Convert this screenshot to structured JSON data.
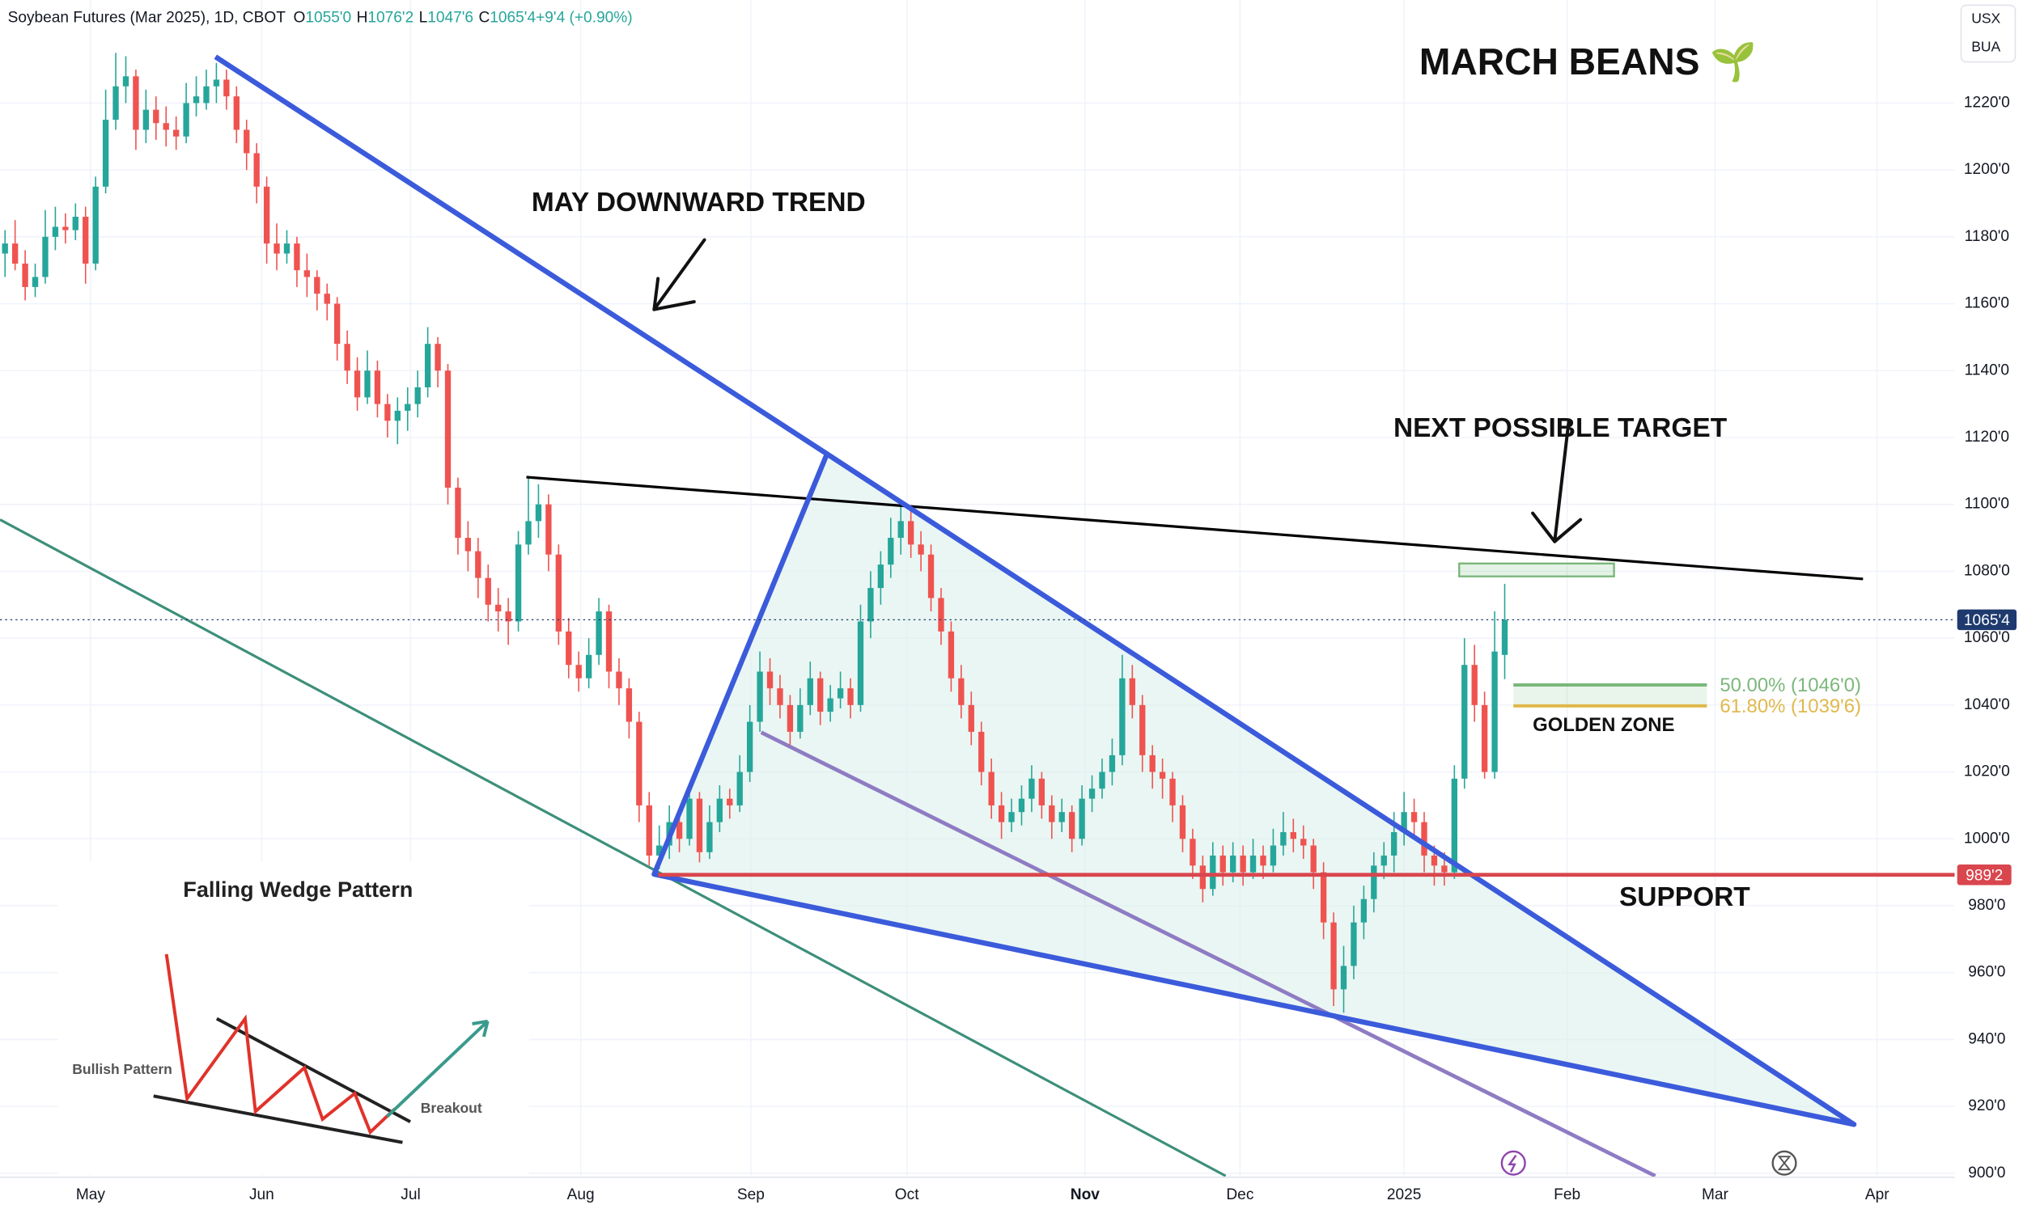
{
  "chart_data": {
    "type": "candlestick",
    "title": "Soybean Futures (Mar 2025), 1D, CBOT",
    "ohlc_legend": [
      "O",
      "1055'0",
      "H",
      "1076'2",
      "L",
      "1047'6",
      "C",
      "1065'4",
      "+9'4 (+0.90%)"
    ],
    "currency_labels": [
      "USX",
      "BUA"
    ],
    "up_color": "#26a69a",
    "down_color": "#ef5350",
    "xlim": [
      -0.5,
      193.7
    ],
    "xticks": [
      {
        "value": 8.5,
        "label": "May"
      },
      {
        "value": 25.5,
        "label": "Jun"
      },
      {
        "value": 40.3,
        "label": "Jul"
      },
      {
        "value": 57.2,
        "label": "Aug"
      },
      {
        "value": 74.1,
        "label": "Sep"
      },
      {
        "value": 89.6,
        "label": "Oct"
      },
      {
        "value": 107.3,
        "label": "Nov"
      },
      {
        "value": 122.7,
        "label": "Dec"
      },
      {
        "value": 139,
        "label": "2025"
      },
      {
        "value": 155.2,
        "label": "Feb"
      },
      {
        "value": 169.9,
        "label": "Mar"
      },
      {
        "value": 186,
        "label": "Apr"
      }
    ],
    "ylim": [
      899.2,
      1250.8
    ],
    "yticks": [
      {
        "value": 900,
        "label": "900'0"
      },
      {
        "value": 920,
        "label": "920'0"
      },
      {
        "value": 940,
        "label": "940'0"
      },
      {
        "value": 960,
        "label": "960'0"
      },
      {
        "value": 980,
        "label": "980'0"
      },
      {
        "value": 1000,
        "label": "1000'0"
      },
      {
        "value": 1020,
        "label": "1020'0"
      },
      {
        "value": 1040,
        "label": "1040'0"
      },
      {
        "value": 1060,
        "label": "1060'0"
      },
      {
        "value": 1080,
        "label": "1080'0"
      },
      {
        "value": 1100,
        "label": "1100'0"
      },
      {
        "value": 1120,
        "label": "1120'0"
      },
      {
        "value": 1140,
        "label": "1140'0"
      },
      {
        "value": 1160,
        "label": "1160'0"
      },
      {
        "value": 1180,
        "label": "1180'0"
      },
      {
        "value": 1200,
        "label": "1200'0"
      },
      {
        "value": 1220,
        "label": "1220'0"
      }
    ],
    "last_price": {
      "value": 1065.5,
      "label": "1065'4",
      "color": "#1e3a6e"
    },
    "support": {
      "value": 989.25,
      "label": "989'2",
      "color": "#d9464e",
      "text": "SUPPORT"
    },
    "fib_levels": [
      {
        "value": 1046,
        "label": "50.00% (1046'0)",
        "color": "#7cb77c"
      },
      {
        "value": 1039.75,
        "label": "61.80% (1039'6)",
        "color": "#e0b84c"
      }
    ],
    "golden_zone_text": "GOLDEN ZONE",
    "annotations": {
      "headline": "MARCH BEANS 🌱",
      "trend": "MAY DOWNWARD TREND",
      "target": "NEXT POSSIBLE TARGET"
    },
    "inset": {
      "title": "Falling Wedge Pattern",
      "left_label": "Bullish Pattern",
      "right_label": "Breakout"
    },
    "candles": [
      [
        1175,
        1182,
        1168,
        1178
      ],
      [
        1178,
        1185,
        1170,
        1172
      ],
      [
        1172,
        1176,
        1161,
        1165
      ],
      [
        1165,
        1172,
        1162,
        1168
      ],
      [
        1168,
        1188,
        1166,
        1180
      ],
      [
        1180,
        1189,
        1176,
        1183
      ],
      [
        1183,
        1187,
        1178,
        1182
      ],
      [
        1182,
        1190,
        1179,
        1186
      ],
      [
        1186,
        1189,
        1166,
        1172
      ],
      [
        1172,
        1198,
        1170,
        1195
      ],
      [
        1195,
        1224,
        1193,
        1215
      ],
      [
        1215,
        1235,
        1212,
        1225
      ],
      [
        1225,
        1234,
        1220,
        1228
      ],
      [
        1228,
        1230,
        1206,
        1212
      ],
      [
        1212,
        1224,
        1208,
        1218
      ],
      [
        1218,
        1222,
        1209,
        1214
      ],
      [
        1214,
        1219,
        1207,
        1212
      ],
      [
        1212,
        1216,
        1206,
        1210
      ],
      [
        1210,
        1226,
        1208,
        1220
      ],
      [
        1220,
        1228,
        1216,
        1222
      ],
      [
        1220,
        1230,
        1218,
        1225
      ],
      [
        1225,
        1232,
        1220,
        1227
      ],
      [
        1227,
        1230,
        1218,
        1222
      ],
      [
        1222,
        1225,
        1208,
        1212
      ],
      [
        1212,
        1215,
        1200,
        1205
      ],
      [
        1205,
        1208,
        1190,
        1195
      ],
      [
        1195,
        1198,
        1172,
        1178
      ],
      [
        1178,
        1184,
        1170,
        1175
      ],
      [
        1175,
        1182,
        1172,
        1178
      ],
      [
        1178,
        1180,
        1165,
        1170
      ],
      [
        1170,
        1175,
        1162,
        1168
      ],
      [
        1168,
        1170,
        1158,
        1163
      ],
      [
        1163,
        1166,
        1155,
        1160
      ],
      [
        1160,
        1162,
        1143,
        1148
      ],
      [
        1148,
        1152,
        1136,
        1140
      ],
      [
        1140,
        1144,
        1128,
        1132
      ],
      [
        1132,
        1146,
        1130,
        1140
      ],
      [
        1140,
        1143,
        1126,
        1130
      ],
      [
        1130,
        1133,
        1120,
        1125
      ],
      [
        1125,
        1132,
        1118,
        1128
      ],
      [
        1128,
        1135,
        1122,
        1130
      ],
      [
        1130,
        1140,
        1126,
        1135
      ],
      [
        1135,
        1153,
        1132,
        1148
      ],
      [
        1148,
        1150,
        1135,
        1140
      ],
      [
        1140,
        1142,
        1100,
        1105
      ],
      [
        1105,
        1108,
        1085,
        1090
      ],
      [
        1090,
        1095,
        1080,
        1086
      ],
      [
        1086,
        1090,
        1072,
        1078
      ],
      [
        1078,
        1082,
        1065,
        1070
      ],
      [
        1070,
        1075,
        1062,
        1068
      ],
      [
        1068,
        1072,
        1058,
        1065
      ],
      [
        1065,
        1092,
        1062,
        1088
      ],
      [
        1088,
        1108,
        1085,
        1095
      ],
      [
        1095,
        1106,
        1090,
        1100
      ],
      [
        1100,
        1103,
        1080,
        1085
      ],
      [
        1085,
        1088,
        1058,
        1062
      ],
      [
        1062,
        1066,
        1048,
        1052
      ],
      [
        1052,
        1056,
        1044,
        1048
      ],
      [
        1048,
        1060,
        1045,
        1055
      ],
      [
        1055,
        1072,
        1052,
        1068
      ],
      [
        1068,
        1070,
        1045,
        1050
      ],
      [
        1050,
        1054,
        1040,
        1045
      ],
      [
        1045,
        1048,
        1030,
        1035
      ],
      [
        1035,
        1038,
        1005,
        1010
      ],
      [
        1010,
        1014,
        992,
        995
      ],
      [
        995,
        1004,
        991,
        998
      ],
      [
        998,
        1010,
        994,
        1005
      ],
      [
        1005,
        1008,
        996,
        1000
      ],
      [
        1000,
        1016,
        998,
        1012
      ],
      [
        1012,
        1014,
        993,
        996
      ],
      [
        996,
        1010,
        994,
        1005
      ],
      [
        1005,
        1016,
        1002,
        1012
      ],
      [
        1012,
        1015,
        1006,
        1010
      ],
      [
        1010,
        1025,
        1008,
        1020
      ],
      [
        1020,
        1040,
        1017,
        1035
      ],
      [
        1035,
        1056,
        1032,
        1050
      ],
      [
        1050,
        1054,
        1040,
        1045
      ],
      [
        1045,
        1049,
        1036,
        1040
      ],
      [
        1040,
        1043,
        1028,
        1032
      ],
      [
        1032,
        1045,
        1030,
        1040
      ],
      [
        1040,
        1053,
        1037,
        1048
      ],
      [
        1048,
        1050,
        1034,
        1038
      ],
      [
        1038,
        1046,
        1035,
        1042
      ],
      [
        1042,
        1050,
        1039,
        1045
      ],
      [
        1045,
        1048,
        1036,
        1040
      ],
      [
        1040,
        1070,
        1038,
        1065
      ],
      [
        1065,
        1080,
        1060,
        1075
      ],
      [
        1075,
        1086,
        1070,
        1082
      ],
      [
        1082,
        1096,
        1078,
        1090
      ],
      [
        1090,
        1100,
        1085,
        1095
      ],
      [
        1095,
        1098,
        1084,
        1088
      ],
      [
        1088,
        1092,
        1080,
        1085
      ],
      [
        1085,
        1088,
        1068,
        1072
      ],
      [
        1072,
        1075,
        1058,
        1062
      ],
      [
        1062,
        1065,
        1044,
        1048
      ],
      [
        1048,
        1052,
        1036,
        1040
      ],
      [
        1040,
        1044,
        1028,
        1032
      ],
      [
        1032,
        1035,
        1016,
        1020
      ],
      [
        1020,
        1024,
        1006,
        1010
      ],
      [
        1010,
        1014,
        1000,
        1005
      ],
      [
        1005,
        1012,
        1002,
        1008
      ],
      [
        1008,
        1016,
        1004,
        1012
      ],
      [
        1012,
        1022,
        1008,
        1018
      ],
      [
        1018,
        1020,
        1006,
        1010
      ],
      [
        1010,
        1013,
        1000,
        1005
      ],
      [
        1005,
        1012,
        1002,
        1008
      ],
      [
        1008,
        1010,
        996,
        1000
      ],
      [
        1000,
        1016,
        998,
        1012
      ],
      [
        1012,
        1019,
        1008,
        1015
      ],
      [
        1015,
        1024,
        1012,
        1020
      ],
      [
        1020,
        1030,
        1016,
        1025
      ],
      [
        1025,
        1055,
        1022,
        1048
      ],
      [
        1048,
        1052,
        1036,
        1040
      ],
      [
        1040,
        1043,
        1020,
        1025
      ],
      [
        1025,
        1028,
        1015,
        1020
      ],
      [
        1020,
        1024,
        1012,
        1018
      ],
      [
        1018,
        1020,
        1005,
        1010
      ],
      [
        1010,
        1013,
        996,
        1000
      ],
      [
        1000,
        1003,
        988,
        992
      ],
      [
        992,
        995,
        981,
        985
      ],
      [
        985,
        999,
        983,
        995
      ],
      [
        995,
        998,
        986,
        990
      ],
      [
        990,
        999,
        987,
        995
      ],
      [
        995,
        998,
        986,
        990
      ],
      [
        990,
        1000,
        988,
        995
      ],
      [
        995,
        998,
        988,
        992
      ],
      [
        992,
        1003,
        990,
        998
      ],
      [
        998,
        1008,
        995,
        1002
      ],
      [
        1002,
        1006,
        996,
        1000
      ],
      [
        1000,
        1004,
        994,
        998
      ],
      [
        998,
        1000,
        985,
        990
      ],
      [
        990,
        993,
        970,
        975
      ],
      [
        975,
        978,
        950,
        955
      ],
      [
        955,
        968,
        948,
        962
      ],
      [
        962,
        980,
        958,
        975
      ],
      [
        975,
        986,
        970,
        982
      ],
      [
        982,
        996,
        978,
        992
      ],
      [
        992,
        999,
        988,
        995
      ],
      [
        995,
        1008,
        990,
        1002
      ],
      [
        1002,
        1014,
        998,
        1008
      ],
      [
        1008,
        1012,
        1000,
        1005
      ],
      [
        1005,
        1008,
        990,
        995
      ],
      [
        995,
        998,
        986,
        992
      ],
      [
        992,
        996,
        986,
        990
      ],
      [
        990,
        1022,
        988,
        1018
      ],
      [
        1018,
        1060,
        1015,
        1052
      ],
      [
        1052,
        1058,
        1035,
        1040
      ],
      [
        1040,
        1044,
        1018,
        1020
      ],
      [
        1020,
        1068,
        1018,
        1056
      ],
      [
        1055,
        1076.25,
        1047.75,
        1065.5
      ]
    ]
  }
}
